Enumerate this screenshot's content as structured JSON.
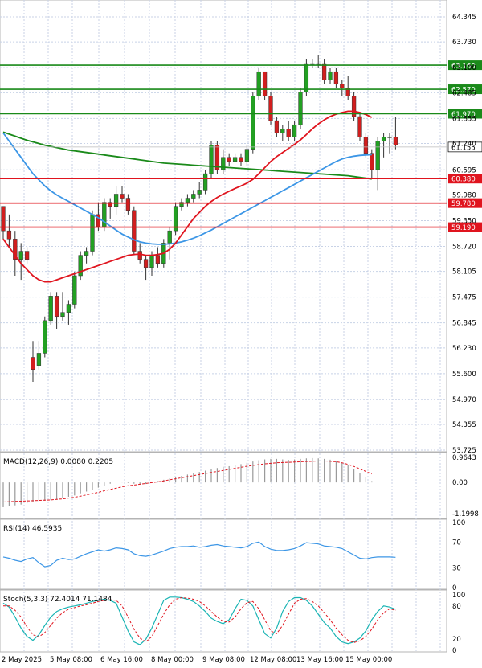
{
  "chart_data": [
    {
      "type": "candlestick",
      "panel": "price",
      "ylim": [
        53.725,
        64.6
      ],
      "y_ticks": [
        "64.345",
        "63.730",
        "63.100",
        "62.485",
        "61.855",
        "61.240",
        "60.595",
        "59.980",
        "59.350",
        "58.720",
        "58.105",
        "57.475",
        "56.845",
        "56.230",
        "55.600",
        "54.970",
        "54.355",
        "53.725"
      ],
      "x_labels": [
        "2 May 2025",
        "5 May 08:00",
        "6 May 16:00",
        "8 May 00:00",
        "9 May 08:00",
        "12 May 08:00",
        "13 May 16:00",
        "15 May 00:00"
      ],
      "grid": true,
      "current_price": "61.155",
      "current_price_value": 61.155,
      "levels": [
        {
          "value": 63.16,
          "label": "63.160",
          "color": "#1a8a1a"
        },
        {
          "value": 62.57,
          "label": "62.570",
          "color": "#1a8a1a"
        },
        {
          "value": 61.97,
          "label": "61.970",
          "color": "#1a8a1a"
        },
        {
          "value": 60.38,
          "label": "60.380",
          "color": "#e0141e"
        },
        {
          "value": 59.78,
          "label": "59.780",
          "color": "#e0141e"
        },
        {
          "value": 59.19,
          "label": "59.190",
          "color": "#e0141e"
        }
      ],
      "candles_ohlc": [
        [
          59.7,
          59.7,
          58.9,
          59.1
        ],
        [
          59.1,
          59.5,
          58.7,
          58.9
        ],
        [
          58.9,
          59.1,
          58.0,
          58.4
        ],
        [
          58.4,
          58.8,
          57.9,
          58.6
        ],
        [
          58.6,
          58.7,
          58.3,
          58.4
        ],
        [
          56.0,
          56.4,
          55.4,
          55.7
        ],
        [
          55.8,
          56.4,
          55.7,
          56.1
        ],
        [
          56.1,
          57.0,
          56.0,
          56.9
        ],
        [
          56.9,
          57.6,
          56.8,
          57.5
        ],
        [
          57.5,
          57.6,
          56.7,
          57.0
        ],
        [
          57.0,
          57.6,
          56.9,
          57.1
        ],
        [
          57.1,
          57.4,
          56.8,
          57.3
        ],
        [
          57.3,
          58.1,
          57.2,
          58.0
        ],
        [
          58.0,
          58.6,
          57.9,
          58.5
        ],
        [
          58.5,
          58.7,
          58.3,
          58.6
        ],
        [
          58.6,
          59.6,
          58.5,
          59.5
        ],
        [
          59.5,
          59.8,
          59.1,
          59.2
        ],
        [
          59.2,
          59.9,
          59.1,
          59.8
        ],
        [
          59.8,
          59.9,
          59.4,
          59.7
        ],
        [
          59.7,
          60.2,
          59.5,
          60.0
        ],
        [
          60.0,
          60.2,
          59.8,
          59.9
        ],
        [
          59.9,
          60.0,
          59.5,
          59.6
        ],
        [
          59.6,
          59.7,
          58.5,
          58.6
        ],
        [
          58.6,
          58.8,
          58.3,
          58.4
        ],
        [
          58.4,
          58.5,
          57.9,
          58.2
        ],
        [
          58.2,
          58.6,
          58.0,
          58.5
        ],
        [
          58.5,
          58.7,
          58.2,
          58.3
        ],
        [
          58.3,
          58.9,
          58.2,
          58.8
        ],
        [
          58.8,
          59.2,
          58.4,
          59.1
        ],
        [
          59.1,
          59.8,
          59.0,
          59.7
        ],
        [
          59.7,
          59.9,
          59.6,
          59.8
        ],
        [
          59.8,
          60.0,
          59.7,
          59.9
        ],
        [
          59.9,
          60.1,
          59.8,
          60.0
        ],
        [
          60.0,
          60.3,
          59.9,
          60.1
        ],
        [
          60.1,
          60.6,
          60.0,
          60.5
        ],
        [
          60.5,
          61.3,
          60.4,
          61.2
        ],
        [
          61.2,
          61.3,
          60.5,
          60.6
        ],
        [
          60.6,
          61.1,
          60.5,
          60.9
        ],
        [
          60.9,
          61.0,
          60.7,
          60.8
        ],
        [
          60.8,
          61.0,
          60.8,
          60.9
        ],
        [
          60.9,
          61.0,
          60.7,
          60.8
        ],
        [
          60.8,
          61.2,
          60.7,
          61.1
        ],
        [
          61.1,
          62.5,
          61.0,
          62.4
        ],
        [
          62.4,
          63.1,
          62.3,
          63.0
        ],
        [
          63.0,
          63.0,
          62.3,
          62.4
        ],
        [
          62.4,
          62.5,
          61.7,
          61.8
        ],
        [
          61.8,
          61.9,
          61.4,
          61.5
        ],
        [
          61.5,
          61.7,
          61.3,
          61.6
        ],
        [
          61.6,
          61.8,
          61.3,
          61.4
        ],
        [
          61.4,
          61.8,
          61.3,
          61.7
        ],
        [
          61.7,
          62.6,
          61.6,
          62.5
        ],
        [
          62.5,
          63.3,
          62.4,
          63.2
        ],
        [
          63.2,
          63.3,
          63.1,
          63.2
        ],
        [
          63.2,
          63.4,
          63.1,
          63.2
        ],
        [
          63.2,
          63.3,
          62.7,
          62.8
        ],
        [
          62.8,
          63.1,
          62.7,
          63.0
        ],
        [
          63.0,
          63.1,
          62.6,
          62.7
        ],
        [
          62.7,
          62.8,
          62.4,
          62.6
        ],
        [
          62.6,
          62.9,
          62.3,
          62.4
        ],
        [
          62.4,
          62.5,
          61.8,
          61.9
        ],
        [
          61.9,
          62.0,
          61.3,
          61.4
        ],
        [
          61.4,
          61.5,
          60.9,
          61.0
        ],
        [
          61.0,
          61.1,
          60.4,
          60.6
        ],
        [
          60.6,
          61.4,
          60.1,
          61.3
        ],
        [
          61.3,
          61.5,
          60.9,
          61.4
        ],
        [
          61.4,
          61.5,
          61.0,
          61.4
        ],
        [
          61.4,
          61.9,
          61.1,
          61.2
        ]
      ],
      "ma_red": [
        58.9,
        58.7,
        58.5,
        58.3,
        58.15,
        58.0,
        57.9,
        57.85,
        57.85,
        57.9,
        57.95,
        58.0,
        58.05,
        58.1,
        58.15,
        58.2,
        58.25,
        58.3,
        58.35,
        58.4,
        58.45,
        58.5,
        58.52,
        58.53,
        58.5,
        58.5,
        58.52,
        58.55,
        58.65,
        58.8,
        59.0,
        59.2,
        59.4,
        59.55,
        59.7,
        59.82,
        59.92,
        60.0,
        60.07,
        60.14,
        60.2,
        60.27,
        60.36,
        60.5,
        60.65,
        60.8,
        60.92,
        61.02,
        61.12,
        61.22,
        61.33,
        61.46,
        61.6,
        61.72,
        61.82,
        61.9,
        61.96,
        62.0,
        62.03,
        62.03,
        62.0,
        61.95,
        61.88
      ],
      "ma_green": [
        61.52,
        61.47,
        61.42,
        61.37,
        61.32,
        61.28,
        61.24,
        61.2,
        61.17,
        61.14,
        61.11,
        61.08,
        61.06,
        61.04,
        61.02,
        61.0,
        60.98,
        60.96,
        60.94,
        60.92,
        60.9,
        60.88,
        60.86,
        60.84,
        60.82,
        60.8,
        60.78,
        60.76,
        60.75,
        60.74,
        60.73,
        60.72,
        60.71,
        60.7,
        60.69,
        60.68,
        60.67,
        60.66,
        60.65,
        60.64,
        60.63,
        60.62,
        60.61,
        60.6,
        60.59,
        60.58,
        60.57,
        60.56,
        60.55,
        60.54,
        60.53,
        60.52,
        60.51,
        60.5,
        60.49,
        60.48,
        60.47,
        60.46,
        60.45,
        60.43,
        60.41,
        60.39,
        60.37
      ],
      "ma_blue": [
        61.5,
        61.3,
        61.1,
        60.9,
        60.7,
        60.5,
        60.35,
        60.2,
        60.08,
        59.98,
        59.9,
        59.82,
        59.74,
        59.66,
        59.58,
        59.5,
        59.42,
        59.32,
        59.22,
        59.12,
        59.02,
        58.95,
        58.88,
        58.83,
        58.8,
        58.78,
        58.77,
        58.77,
        58.78,
        58.8,
        58.83,
        58.87,
        58.92,
        58.98,
        59.05,
        59.12,
        59.2,
        59.28,
        59.36,
        59.44,
        59.52,
        59.6,
        59.68,
        59.76,
        59.84,
        59.92,
        60.0,
        60.08,
        60.16,
        60.24,
        60.32,
        60.4,
        60.48,
        60.56,
        60.64,
        60.72,
        60.8,
        60.86,
        60.9,
        60.93,
        60.95,
        60.96,
        60.97
      ]
    },
    {
      "type": "bar",
      "panel": "macd",
      "title": "MACD(12,26,9) 0.0080 0.2205",
      "y_ticks": [
        "0.9643",
        "0.00",
        "-1.1998"
      ],
      "ylim": [
        -1.32,
        1.05
      ],
      "histogram": [
        -0.95,
        -0.9,
        -0.88,
        -0.85,
        -0.8,
        -0.75,
        -0.72,
        -0.7,
        -0.68,
        -0.65,
        -0.6,
        -0.55,
        -0.5,
        -0.42,
        -0.35,
        -0.28,
        -0.2,
        -0.12,
        -0.05,
        0.0,
        0.02,
        -0.02,
        -0.05,
        -0.08,
        -0.06,
        0.0,
        0.05,
        0.1,
        0.15,
        0.2,
        0.25,
        0.3,
        0.35,
        0.4,
        0.45,
        0.5,
        0.55,
        0.6,
        0.62,
        0.65,
        0.7,
        0.75,
        0.8,
        0.85,
        0.88,
        0.9,
        0.9,
        0.88,
        0.86,
        0.88,
        0.9,
        0.92,
        0.93,
        0.92,
        0.9,
        0.87,
        0.82,
        0.75,
        0.65,
        0.5,
        0.35,
        0.2,
        0.05
      ],
      "signal": [
        -0.75,
        -0.74,
        -0.73,
        -0.72,
        -0.71,
        -0.7,
        -0.69,
        -0.68,
        -0.67,
        -0.65,
        -0.63,
        -0.6,
        -0.57,
        -0.53,
        -0.48,
        -0.43,
        -0.38,
        -0.32,
        -0.27,
        -0.22,
        -0.17,
        -0.13,
        -0.1,
        -0.07,
        -0.04,
        -0.01,
        0.02,
        0.06,
        0.1,
        0.14,
        0.18,
        0.22,
        0.26,
        0.3,
        0.34,
        0.38,
        0.42,
        0.46,
        0.5,
        0.54,
        0.58,
        0.62,
        0.65,
        0.68,
        0.71,
        0.73,
        0.75,
        0.76,
        0.77,
        0.78,
        0.79,
        0.8,
        0.81,
        0.82,
        0.82,
        0.81,
        0.79,
        0.75,
        0.69,
        0.61,
        0.52,
        0.42,
        0.32
      ]
    },
    {
      "type": "line",
      "panel": "rsi",
      "title": "RSI(14) 46.5935",
      "y_ticks": [
        "100",
        "70",
        "30",
        "0"
      ],
      "ylim": [
        0,
        100
      ],
      "values": [
        47,
        45,
        42,
        40,
        44,
        46,
        38,
        32,
        34,
        42,
        45,
        43,
        44,
        48,
        52,
        55,
        58,
        56,
        58,
        61,
        60,
        58,
        52,
        49,
        48,
        50,
        53,
        56,
        60,
        62,
        63,
        63,
        64,
        62,
        63,
        65,
        66,
        64,
        63,
        62,
        61,
        63,
        68,
        70,
        63,
        59,
        57,
        57,
        58,
        60,
        64,
        69,
        68,
        67,
        64,
        63,
        62,
        60,
        55,
        50,
        45,
        44,
        46,
        47,
        47,
        47,
        46.6
      ]
    },
    {
      "type": "line",
      "panel": "stoch",
      "title": "Stoch(5,3,3) 72.4014 71.1484",
      "y_ticks": [
        "100",
        "80",
        "20",
        "0"
      ],
      "ylim": [
        0,
        100
      ],
      "k": [
        85,
        78,
        60,
        40,
        25,
        18,
        28,
        45,
        60,
        70,
        75,
        78,
        80,
        82,
        85,
        88,
        90,
        92,
        90,
        85,
        60,
        35,
        15,
        10,
        20,
        40,
        65,
        90,
        96,
        96,
        95,
        92,
        88,
        80,
        70,
        58,
        52,
        48,
        55,
        75,
        92,
        90,
        80,
        55,
        30,
        22,
        40,
        70,
        88,
        95,
        95,
        90,
        80,
        65,
        50,
        40,
        25,
        15,
        12,
        15,
        22,
        35,
        55,
        70,
        80,
        78,
        74
      ],
      "d": [
        80,
        80,
        72,
        60,
        42,
        28,
        24,
        32,
        45,
        58,
        68,
        74,
        77,
        80,
        82,
        85,
        88,
        90,
        91,
        90,
        80,
        60,
        38,
        22,
        15,
        25,
        45,
        65,
        82,
        92,
        95,
        94,
        92,
        88,
        80,
        70,
        60,
        52,
        51,
        60,
        75,
        86,
        88,
        75,
        55,
        35,
        30,
        45,
        65,
        85,
        92,
        93,
        88,
        80,
        68,
        55,
        40,
        28,
        18,
        14,
        17,
        25,
        38,
        55,
        68,
        75,
        72
      ]
    }
  ]
}
